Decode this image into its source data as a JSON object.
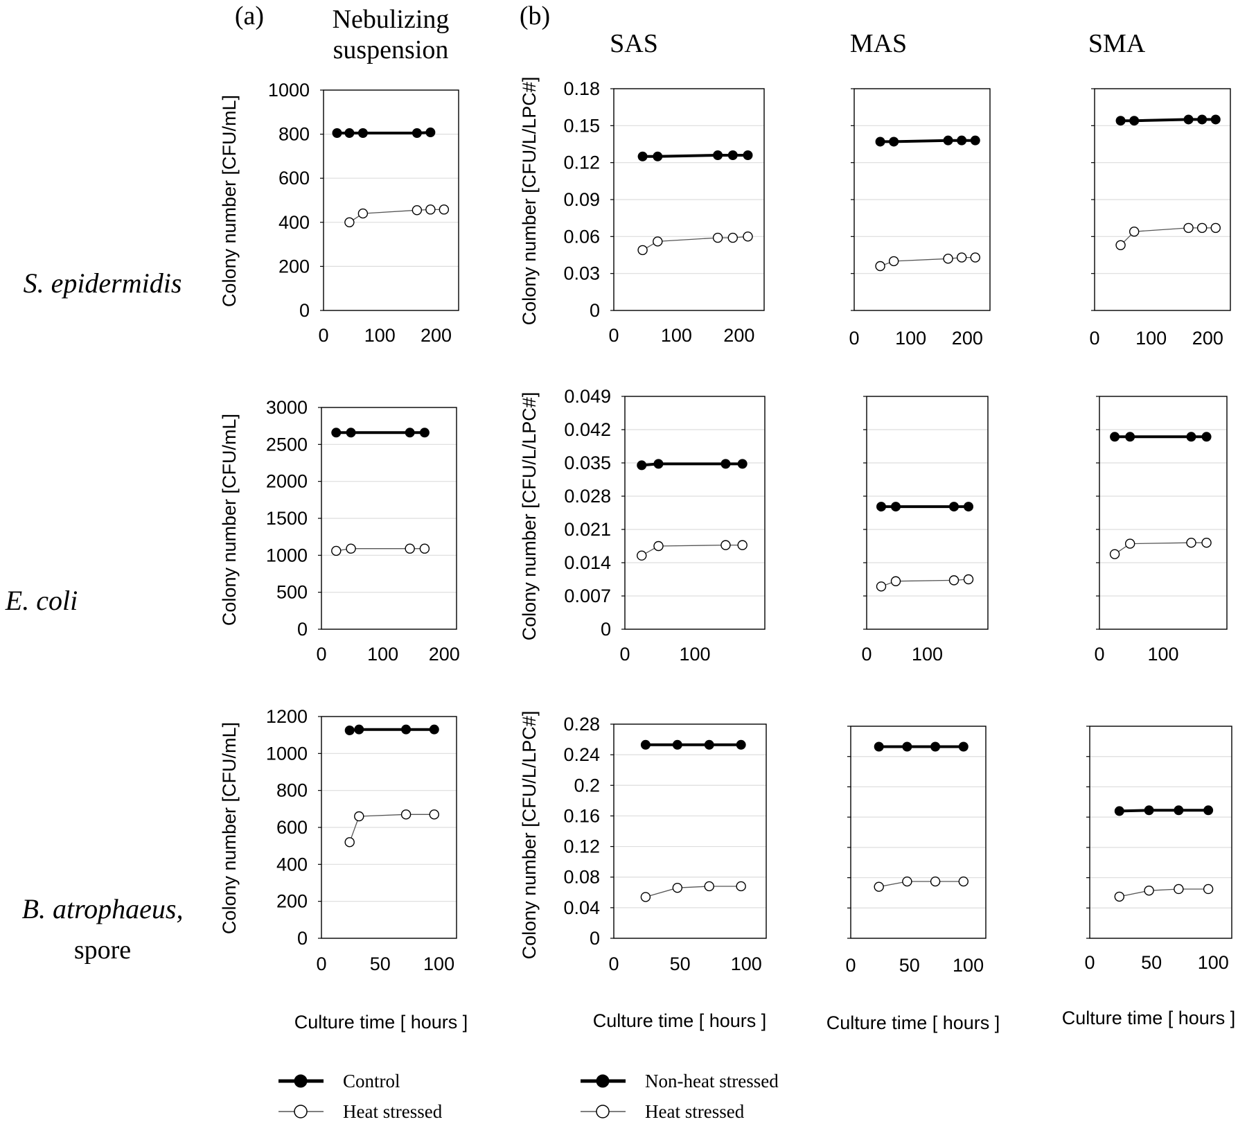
{
  "figure": {
    "panel_a_label": "(a)",
    "panel_b_label": "(b)",
    "col_headers": [
      [
        "Nebulizing",
        "suspension"
      ],
      [
        "SAS"
      ],
      [
        "MAS"
      ],
      [
        "SMA"
      ]
    ],
    "row_labels": [
      {
        "italic": "S. epidermidis",
        "normal": ""
      },
      {
        "italic": "E. coli",
        "normal": ""
      },
      {
        "italic": "B. atrophaeus,",
        "normal": "spore"
      }
    ],
    "ylabel_a": "Colony number [CFU/mL]",
    "ylabel_b": "Colony number [CFU/L/LPC#]",
    "xlabel": "Culture time [ hours ]",
    "legend_a": {
      "filled": "Control",
      "open": "Heat stressed"
    },
    "legend_b": {
      "filled": "Non-heat stressed",
      "open": "Heat stressed"
    },
    "colors": {
      "filled": "#000000",
      "open_stroke": "#000000",
      "open_fill": "#ffffff",
      "grid": "#dddddd"
    }
  },
  "chart_data": [
    {
      "type": "line",
      "row": 0,
      "col": 0,
      "xlim": [
        0,
        240
      ],
      "xticks": [
        0,
        100,
        200
      ],
      "ylim": [
        0,
        1000
      ],
      "yticks": [
        0,
        200,
        400,
        600,
        800,
        1000
      ],
      "ytick_labels": [
        "0",
        "200",
        "400",
        "600",
        "800",
        "1000"
      ],
      "series": [
        {
          "name": "Control",
          "style": "filled",
          "x": [
            24,
            46,
            70,
            166,
            190
          ],
          "y": [
            805,
            805,
            805,
            805,
            808
          ]
        },
        {
          "name": "Heat stressed",
          "style": "open",
          "x": [
            46,
            70,
            166,
            190,
            214
          ],
          "y": [
            400,
            440,
            455,
            458,
            458
          ]
        }
      ]
    },
    {
      "type": "line",
      "row": 0,
      "col": 1,
      "xlim": [
        0,
        240
      ],
      "xticks": [
        0,
        100,
        200
      ],
      "ylim": [
        0,
        0.18
      ],
      "yticks": [
        0,
        0.03,
        0.06,
        0.09,
        0.12,
        0.15,
        0.18
      ],
      "ytick_labels": [
        "0",
        "0.03",
        "0.06",
        "0.09",
        "0.12",
        "0.15",
        "0.18"
      ],
      "series": [
        {
          "name": "Non-heat stressed",
          "style": "filled",
          "x": [
            46,
            70,
            166,
            190,
            214
          ],
          "y": [
            0.125,
            0.125,
            0.126,
            0.126,
            0.126
          ]
        },
        {
          "name": "Heat stressed",
          "style": "open",
          "x": [
            46,
            70,
            166,
            190,
            214
          ],
          "y": [
            0.049,
            0.056,
            0.059,
            0.059,
            0.06
          ]
        }
      ]
    },
    {
      "type": "line",
      "row": 0,
      "col": 2,
      "xlim": [
        0,
        240
      ],
      "xticks": [
        0,
        100,
        200
      ],
      "ylim": [
        0,
        0.18
      ],
      "yticks": [
        0,
        0.03,
        0.06,
        0.09,
        0.12,
        0.15,
        0.18
      ],
      "ytick_labels": [],
      "series": [
        {
          "name": "Non-heat stressed",
          "style": "filled",
          "x": [
            46,
            70,
            166,
            190,
            214
          ],
          "y": [
            0.137,
            0.137,
            0.138,
            0.138,
            0.138
          ]
        },
        {
          "name": "Heat stressed",
          "style": "open",
          "x": [
            46,
            70,
            166,
            190,
            214
          ],
          "y": [
            0.036,
            0.04,
            0.042,
            0.043,
            0.043
          ]
        }
      ]
    },
    {
      "type": "line",
      "row": 0,
      "col": 3,
      "xlim": [
        0,
        240
      ],
      "xticks": [
        0,
        100,
        200
      ],
      "ylim": [
        0,
        0.18
      ],
      "yticks": [
        0,
        0.03,
        0.06,
        0.09,
        0.12,
        0.15,
        0.18
      ],
      "ytick_labels": [],
      "series": [
        {
          "name": "Non-heat stressed",
          "style": "filled",
          "x": [
            46,
            70,
            166,
            190,
            214
          ],
          "y": [
            0.154,
            0.154,
            0.155,
            0.155,
            0.155
          ]
        },
        {
          "name": "Heat stressed",
          "style": "open",
          "x": [
            46,
            70,
            166,
            190,
            214
          ],
          "y": [
            0.053,
            0.064,
            0.067,
            0.067,
            0.067
          ]
        }
      ]
    },
    {
      "type": "line",
      "row": 1,
      "col": 0,
      "xlim": [
        0,
        220
      ],
      "xticks": [
        0,
        100,
        200
      ],
      "ylim": [
        0,
        3000
      ],
      "yticks": [
        0,
        500,
        1000,
        1500,
        2000,
        2500,
        3000
      ],
      "ytick_labels": [
        "0",
        "500",
        "1000",
        "1500",
        "2000",
        "2500",
        "3000"
      ],
      "series": [
        {
          "name": "Control",
          "style": "filled",
          "x": [
            24,
            48,
            144,
            168
          ],
          "y": [
            2660,
            2660,
            2660,
            2660
          ]
        },
        {
          "name": "Heat stressed",
          "style": "open",
          "x": [
            24,
            48,
            144,
            168
          ],
          "y": [
            1060,
            1090,
            1090,
            1090
          ]
        }
      ]
    },
    {
      "type": "line",
      "row": 1,
      "col": 1,
      "xlim": [
        0,
        200
      ],
      "xticks": [
        0,
        100
      ],
      "ylim": [
        0,
        0.049
      ],
      "yticks": [
        0,
        0.007,
        0.014,
        0.021,
        0.028,
        0.035,
        0.042,
        0.049
      ],
      "ytick_labels": [
        "0",
        "0.007",
        "0.014",
        "0.021",
        "0.028",
        "0.035",
        "0.042",
        "0.049"
      ],
      "series": [
        {
          "name": "Non-heat stressed",
          "style": "filled",
          "x": [
            24,
            48,
            144,
            168
          ],
          "y": [
            0.0345,
            0.0348,
            0.0348,
            0.0348
          ]
        },
        {
          "name": "Heat stressed",
          "style": "open",
          "x": [
            24,
            48,
            144,
            168
          ],
          "y": [
            0.0155,
            0.0175,
            0.0177,
            0.0177
          ]
        }
      ]
    },
    {
      "type": "line",
      "row": 1,
      "col": 2,
      "xlim": [
        0,
        200
      ],
      "xticks": [
        0,
        100
      ],
      "ylim": [
        0,
        0.049
      ],
      "yticks": [
        0,
        0.007,
        0.014,
        0.021,
        0.028,
        0.035,
        0.042,
        0.049
      ],
      "ytick_labels": [],
      "series": [
        {
          "name": "Non-heat stressed",
          "style": "filled",
          "x": [
            24,
            48,
            144,
            168
          ],
          "y": [
            0.0258,
            0.0258,
            0.0258,
            0.0258
          ]
        },
        {
          "name": "Heat stressed",
          "style": "open",
          "x": [
            24,
            48,
            144,
            168
          ],
          "y": [
            0.009,
            0.0101,
            0.0103,
            0.0105
          ]
        }
      ]
    },
    {
      "type": "line",
      "row": 1,
      "col": 3,
      "xlim": [
        0,
        200
      ],
      "xticks": [
        0,
        100
      ],
      "ylim": [
        0,
        0.049
      ],
      "yticks": [
        0,
        0.007,
        0.014,
        0.021,
        0.028,
        0.035,
        0.042,
        0.049
      ],
      "ytick_labels": [],
      "series": [
        {
          "name": "Non-heat stressed",
          "style": "filled",
          "x": [
            24,
            48,
            144,
            168
          ],
          "y": [
            0.0405,
            0.0405,
            0.0405,
            0.0405
          ]
        },
        {
          "name": "Heat stressed",
          "style": "open",
          "x": [
            24,
            48,
            144,
            168
          ],
          "y": [
            0.0158,
            0.018,
            0.0182,
            0.0182
          ]
        }
      ]
    },
    {
      "type": "line",
      "row": 2,
      "col": 0,
      "xlim": [
        0,
        115
      ],
      "xticks": [
        0,
        50,
        100
      ],
      "ylim": [
        0,
        1200
      ],
      "yticks": [
        0,
        200,
        400,
        600,
        800,
        1000,
        1200
      ],
      "ytick_labels": [
        "0",
        "200",
        "400",
        "600",
        "800",
        "1000",
        "1200"
      ],
      "series": [
        {
          "name": "Control",
          "style": "filled",
          "x": [
            24,
            32,
            72,
            96
          ],
          "y": [
            1125,
            1130,
            1130,
            1130
          ]
        },
        {
          "name": "Heat stressed",
          "style": "open",
          "x": [
            24,
            32,
            72,
            96
          ],
          "y": [
            520,
            660,
            670,
            670
          ]
        }
      ]
    },
    {
      "type": "line",
      "row": 2,
      "col": 1,
      "xlim": [
        0,
        115
      ],
      "xticks": [
        0,
        50,
        100
      ],
      "ylim": [
        0,
        0.28
      ],
      "yticks": [
        0,
        0.04,
        0.08,
        0.12,
        0.16,
        0.2,
        0.24,
        0.28
      ],
      "ytick_labels": [
        "0",
        "0.04",
        "0.08",
        "0.12",
        "0.16",
        "0.2",
        "0.24",
        "0.28"
      ],
      "series": [
        {
          "name": "Non-heat stressed",
          "style": "filled",
          "x": [
            24,
            48,
            72,
            96
          ],
          "y": [
            0.253,
            0.253,
            0.253,
            0.253
          ]
        },
        {
          "name": "Heat stressed",
          "style": "open",
          "x": [
            24,
            48,
            72,
            96
          ],
          "y": [
            0.054,
            0.066,
            0.068,
            0.068
          ]
        }
      ]
    },
    {
      "type": "line",
      "row": 2,
      "col": 2,
      "xlim": [
        0,
        115
      ],
      "xticks": [
        0,
        50,
        100
      ],
      "ylim": [
        0,
        0.28
      ],
      "yticks": [
        0,
        0.04,
        0.08,
        0.12,
        0.16,
        0.2,
        0.24,
        0.28
      ],
      "ytick_labels": [],
      "series": [
        {
          "name": "Non-heat stressed",
          "style": "filled",
          "x": [
            24,
            48,
            72,
            96
          ],
          "y": [
            0.253,
            0.253,
            0.253,
            0.253
          ]
        },
        {
          "name": "Heat stressed",
          "style": "open",
          "x": [
            24,
            48,
            72,
            96
          ],
          "y": [
            0.068,
            0.075,
            0.075,
            0.075
          ]
        }
      ]
    },
    {
      "type": "line",
      "row": 2,
      "col": 3,
      "xlim": [
        0,
        115
      ],
      "xticks": [
        0,
        50,
        100
      ],
      "ylim": [
        0,
        0.28
      ],
      "yticks": [
        0,
        0.04,
        0.08,
        0.12,
        0.16,
        0.2,
        0.24,
        0.28
      ],
      "ytick_labels": [],
      "series": [
        {
          "name": "Non-heat stressed",
          "style": "filled",
          "x": [
            24,
            48,
            72,
            96
          ],
          "y": [
            0.168,
            0.169,
            0.169,
            0.169
          ]
        },
        {
          "name": "Heat stressed",
          "style": "open",
          "x": [
            24,
            48,
            72,
            96
          ],
          "y": [
            0.055,
            0.063,
            0.065,
            0.065
          ]
        }
      ]
    }
  ]
}
